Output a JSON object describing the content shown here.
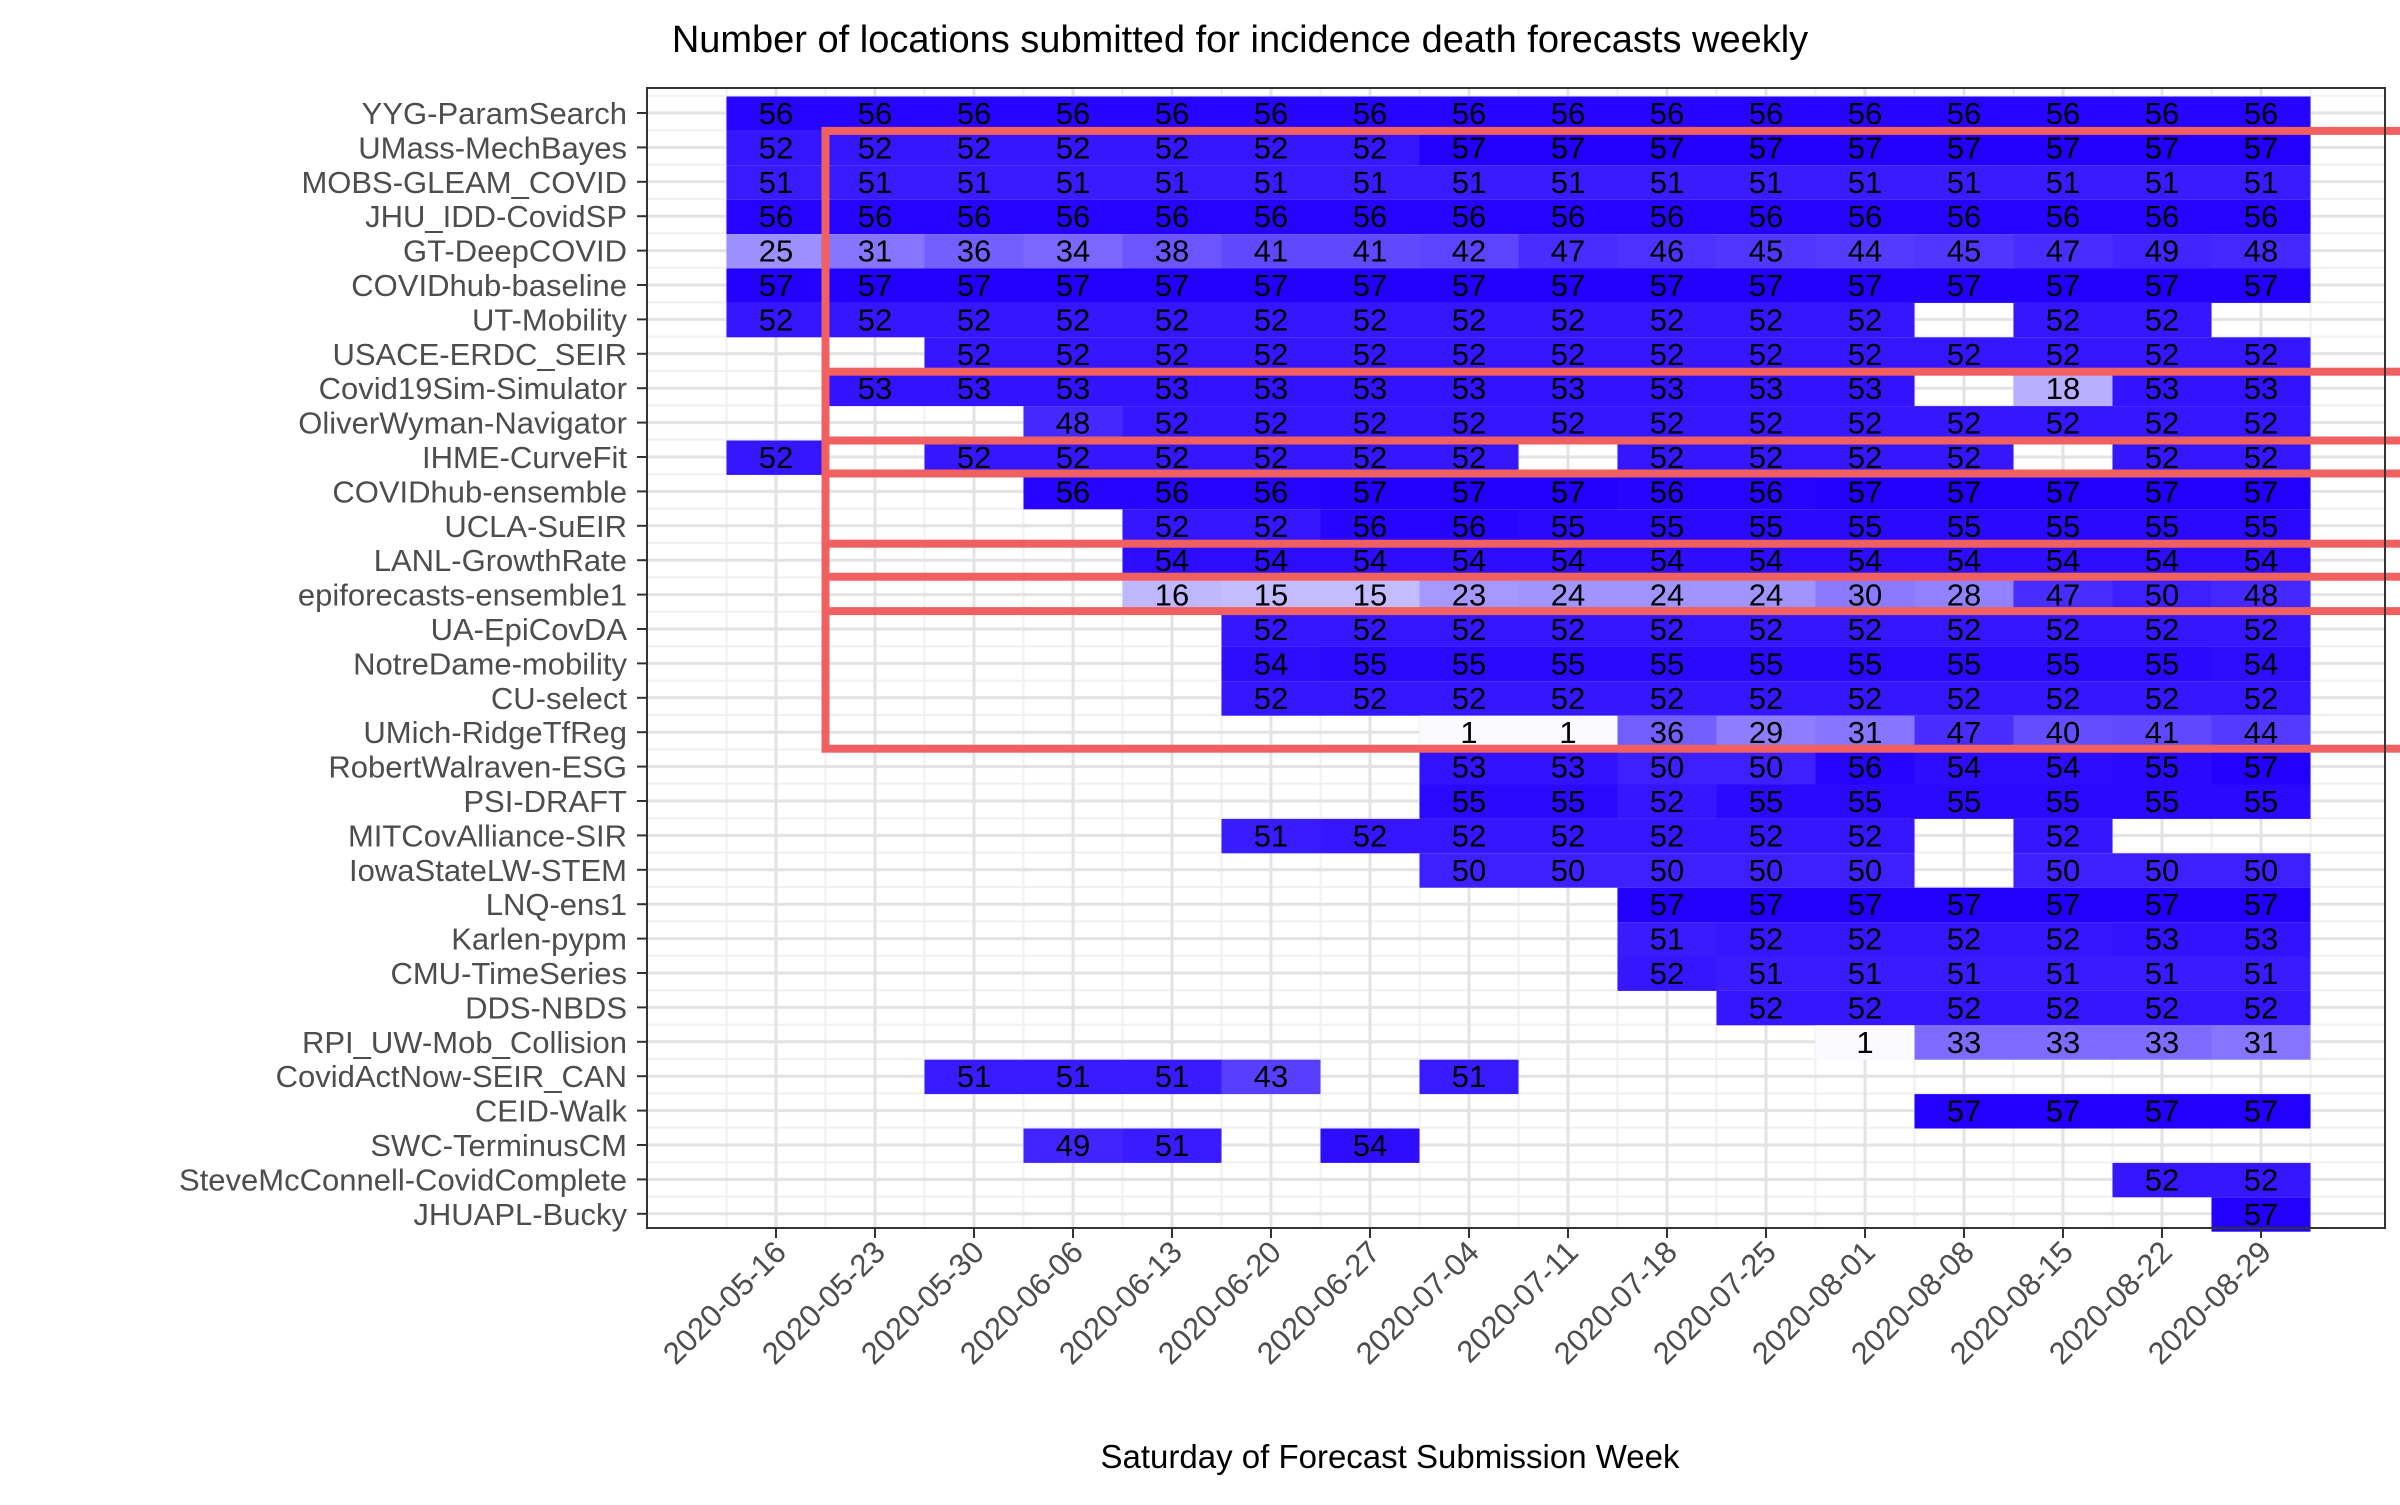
{
  "chart_data": {
    "type": "heatmap",
    "title": "Number of locations submitted for incidence death forecasts weekly",
    "xlabel": "Saturday of Forecast Submission Week",
    "ylabel": "",
    "x": [
      "2020-05-16",
      "2020-05-23",
      "2020-05-30",
      "2020-06-06",
      "2020-06-13",
      "2020-06-20",
      "2020-06-27",
      "2020-07-04",
      "2020-07-11",
      "2020-07-18",
      "2020-07-25",
      "2020-08-01",
      "2020-08-08",
      "2020-08-15",
      "2020-08-22",
      "2020-08-29"
    ],
    "y": [
      "YYG-ParamSearch",
      "UMass-MechBayes",
      "MOBS-GLEAM_COVID",
      "JHU_IDD-CovidSP",
      "GT-DeepCOVID",
      "COVIDhub-baseline",
      "UT-Mobility",
      "USACE-ERDC_SEIR",
      "Covid19Sim-Simulator",
      "OliverWyman-Navigator",
      "IHME-CurveFit",
      "COVIDhub-ensemble",
      "UCLA-SuEIR",
      "LANL-GrowthRate",
      "epiforecasts-ensemble1",
      "UA-EpiCovDA",
      "NotreDame-mobility",
      "CU-select",
      "UMich-RidgeTfReg",
      "RobertWalraven-ESG",
      "PSI-DRAFT",
      "MITCovAlliance-SIR",
      "IowaStateLW-STEM",
      "LNQ-ens1",
      "Karlen-pypm",
      "CMU-TimeSeries",
      "DDS-NBDS",
      "RPI_UW-Mob_Collision",
      "CovidActNow-SEIR_CAN",
      "CEID-Walk",
      "SWC-TerminusCM",
      "SteveMcConnell-CovidComplete",
      "JHUAPL-Bucky"
    ],
    "values": [
      [
        56,
        56,
        56,
        56,
        56,
        56,
        56,
        56,
        56,
        56,
        56,
        56,
        56,
        56,
        56,
        56
      ],
      [
        52,
        52,
        52,
        52,
        52,
        52,
        52,
        57,
        57,
        57,
        57,
        57,
        57,
        57,
        57,
        57
      ],
      [
        51,
        51,
        51,
        51,
        51,
        51,
        51,
        51,
        51,
        51,
        51,
        51,
        51,
        51,
        51,
        51
      ],
      [
        56,
        56,
        56,
        56,
        56,
        56,
        56,
        56,
        56,
        56,
        56,
        56,
        56,
        56,
        56,
        56
      ],
      [
        25,
        31,
        36,
        34,
        38,
        41,
        41,
        42,
        47,
        46,
        45,
        44,
        45,
        47,
        49,
        48
      ],
      [
        57,
        57,
        57,
        57,
        57,
        57,
        57,
        57,
        57,
        57,
        57,
        57,
        57,
        57,
        57,
        57
      ],
      [
        52,
        52,
        52,
        52,
        52,
        52,
        52,
        52,
        52,
        52,
        52,
        52,
        null,
        52,
        52,
        null
      ],
      [
        null,
        null,
        52,
        52,
        52,
        52,
        52,
        52,
        52,
        52,
        52,
        52,
        52,
        52,
        52,
        52
      ],
      [
        null,
        53,
        53,
        53,
        53,
        53,
        53,
        53,
        53,
        53,
        53,
        53,
        null,
        18,
        53,
        53
      ],
      [
        null,
        null,
        null,
        48,
        52,
        52,
        52,
        52,
        52,
        52,
        52,
        52,
        52,
        52,
        52,
        52
      ],
      [
        52,
        null,
        52,
        52,
        52,
        52,
        52,
        52,
        null,
        52,
        52,
        52,
        52,
        null,
        52,
        52
      ],
      [
        null,
        null,
        null,
        56,
        56,
        56,
        57,
        57,
        57,
        56,
        56,
        57,
        57,
        57,
        57,
        57
      ],
      [
        null,
        null,
        null,
        null,
        52,
        52,
        56,
        56,
        55,
        55,
        55,
        55,
        55,
        55,
        55,
        55
      ],
      [
        null,
        null,
        null,
        null,
        54,
        54,
        54,
        54,
        54,
        54,
        54,
        54,
        54,
        54,
        54,
        54
      ],
      [
        null,
        null,
        null,
        null,
        16,
        15,
        15,
        23,
        24,
        24,
        24,
        30,
        28,
        47,
        50,
        48
      ],
      [
        null,
        null,
        null,
        null,
        null,
        52,
        52,
        52,
        52,
        52,
        52,
        52,
        52,
        52,
        52,
        52
      ],
      [
        null,
        null,
        null,
        null,
        null,
        54,
        55,
        55,
        55,
        55,
        55,
        55,
        55,
        55,
        55,
        54
      ],
      [
        null,
        null,
        null,
        null,
        null,
        52,
        52,
        52,
        52,
        52,
        52,
        52,
        52,
        52,
        52,
        52
      ],
      [
        null,
        null,
        null,
        null,
        null,
        null,
        null,
        1,
        1,
        36,
        29,
        31,
        47,
        40,
        41,
        44
      ],
      [
        null,
        null,
        null,
        null,
        null,
        null,
        null,
        53,
        53,
        50,
        50,
        56,
        54,
        54,
        55,
        57
      ],
      [
        null,
        null,
        null,
        null,
        null,
        null,
        null,
        55,
        55,
        52,
        55,
        55,
        55,
        55,
        55,
        55
      ],
      [
        null,
        null,
        null,
        null,
        null,
        51,
        52,
        52,
        52,
        52,
        52,
        52,
        null,
        52,
        null,
        null
      ],
      [
        null,
        null,
        null,
        null,
        null,
        null,
        null,
        50,
        50,
        50,
        50,
        50,
        null,
        50,
        50,
        50
      ],
      [
        null,
        null,
        null,
        null,
        null,
        null,
        null,
        null,
        null,
        57,
        57,
        57,
        57,
        57,
        57,
        57
      ],
      [
        null,
        null,
        null,
        null,
        null,
        null,
        null,
        null,
        null,
        51,
        52,
        52,
        52,
        52,
        53,
        53
      ],
      [
        null,
        null,
        null,
        null,
        null,
        null,
        null,
        null,
        null,
        52,
        51,
        51,
        51,
        51,
        51,
        51
      ],
      [
        null,
        null,
        null,
        null,
        null,
        null,
        null,
        null,
        null,
        null,
        52,
        52,
        52,
        52,
        52,
        52
      ],
      [
        null,
        null,
        null,
        null,
        null,
        null,
        null,
        null,
        null,
        null,
        null,
        1,
        33,
        33,
        33,
        31
      ],
      [
        null,
        null,
        51,
        51,
        51,
        43,
        null,
        51,
        null,
        null,
        null,
        null,
        null,
        null,
        null,
        null
      ],
      [
        null,
        null,
        null,
        null,
        null,
        null,
        null,
        null,
        null,
        null,
        null,
        null,
        57,
        57,
        57,
        57
      ],
      [
        null,
        null,
        null,
        49,
        51,
        null,
        54,
        null,
        null,
        null,
        null,
        null,
        null,
        null,
        null,
        null
      ],
      [
        null,
        null,
        null,
        null,
        null,
        null,
        null,
        null,
        null,
        null,
        null,
        null,
        null,
        null,
        52,
        52
      ],
      [
        null,
        null,
        null,
        null,
        null,
        null,
        null,
        null,
        null,
        null,
        null,
        null,
        null,
        null,
        null,
        57
      ]
    ],
    "color_scale": {
      "low": "#ffffff",
      "high": "#2200ff",
      "max_value": 57
    },
    "highlight_boxes": [
      {
        "rows": [
          "UMass-MechBayes",
          "epiforecasts-ensemble1"
        ],
        "from": "2020-05-23",
        "color": "#f06060"
      },
      {
        "rows": [
          "Covid19Sim-Simulator",
          "UMich-RidgeTfReg"
        ],
        "from": "2020-05-23",
        "color": "#f06060"
      },
      {
        "rows": [
          "IHME-CurveFit",
          "IHME-CurveFit"
        ],
        "from": "2020-05-23",
        "color": "#f06060"
      },
      {
        "rows": [
          "LANL-GrowthRate",
          "LANL-GrowthRate"
        ],
        "from": "2020-05-23",
        "color": "#f06060"
      }
    ],
    "grid": true
  }
}
